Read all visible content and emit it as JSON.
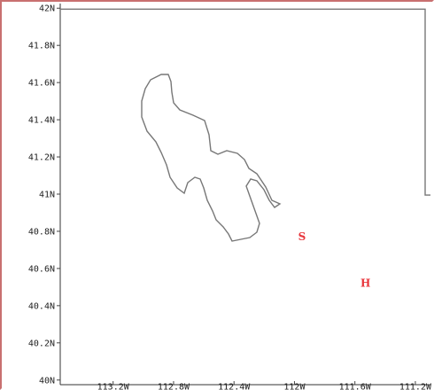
{
  "map": {
    "lat_labels": [
      "42N",
      "41.8N",
      "41.6N",
      "41.4N",
      "41.2N",
      "41N",
      "40.8N",
      "40.6N",
      "40.4N",
      "40.2N",
      "40N"
    ],
    "lat_values": [
      42.0,
      41.8,
      41.6,
      41.4,
      41.2,
      41.0,
      40.8,
      40.6,
      40.4,
      40.2,
      40.0
    ],
    "lon_labels": [
      "113.2W",
      "112.8W",
      "112.4W",
      "112W",
      "111.6W",
      "111.2W"
    ],
    "lon_values": [
      -113.2,
      -112.8,
      -112.4,
      -112.0,
      -111.6,
      -111.2
    ],
    "lon_range": [
      -113.55,
      -111.1
    ],
    "lat_range": [
      39.975,
      42.025
    ],
    "markers": [
      {
        "label": "S",
        "lon": -111.95,
        "lat": 40.77,
        "color": "#e8363c"
      },
      {
        "label": "H",
        "lon": -111.53,
        "lat": 40.52,
        "color": "#e8363c"
      }
    ],
    "boundary_color": "#777777",
    "frame_color": "#c87070"
  }
}
